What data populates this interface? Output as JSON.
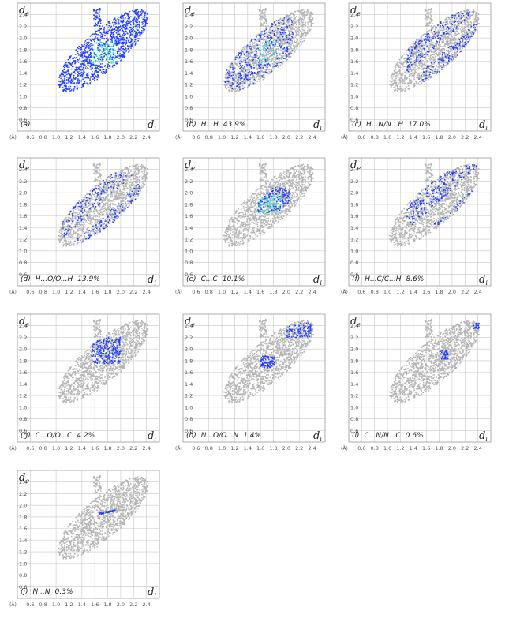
{
  "chart_data": {
    "type": "scatter",
    "description_axes": {
      "x_symbol": "d",
      "x_sub": "i",
      "y_symbol": "d",
      "y_sub": "e",
      "unit": "(Å)"
    },
    "x_ticks": [
      "0.6",
      "0.8",
      "1.0",
      "1.2",
      "1.4",
      "1.6",
      "1.8",
      "2.0",
      "2.2",
      "2.4"
    ],
    "y_ticks": [
      "0.6",
      "0.8",
      "1.0",
      "1.2",
      "1.4",
      "1.6",
      "1.8",
      "2.0",
      "2.2",
      "2.4"
    ],
    "xlim": [
      0.4,
      2.6
    ],
    "ylim": [
      0.4,
      2.6
    ],
    "colors": {
      "background_points": "#b4b4b4",
      "highlight": "#1e3cff",
      "highlight_dense": "#2fe0d0",
      "frame": "#9a9a9a"
    },
    "panels": [
      {
        "id": "a",
        "label": "(a)",
        "contact": "",
        "percent": "",
        "highlight": "full"
      },
      {
        "id": "b",
        "label": "(b)",
        "contact": "H...H",
        "percent": "43.9%",
        "highlight": "hh"
      },
      {
        "id": "c",
        "label": "(c)",
        "contact": "H...N/N...H",
        "percent": "17.0%",
        "highlight": "hn"
      },
      {
        "id": "d",
        "label": "(d)",
        "contact": "H...O/O...H",
        "percent": "13.9%",
        "highlight": "ho"
      },
      {
        "id": "e",
        "label": "(e)",
        "contact": "C...C",
        "percent": "10.1%",
        "highlight": "cc"
      },
      {
        "id": "f",
        "label": "(f)",
        "contact": "H...C/C...H",
        "percent": "8.6%",
        "highlight": "hc"
      },
      {
        "id": "g",
        "label": "(g)",
        "contact": "C...O/O...C",
        "percent": "4.2%",
        "highlight": "co"
      },
      {
        "id": "h",
        "label": "(h)",
        "contact": "N...O/O...N",
        "percent": "1.4%",
        "highlight": "no"
      },
      {
        "id": "i",
        "label": "(i)",
        "contact": "C...N/N...C",
        "percent": "0.6%",
        "highlight": "cn"
      },
      {
        "id": "j",
        "label": "(j)",
        "contact": "N...N",
        "percent": "0.3%",
        "highlight": "nn"
      }
    ]
  }
}
